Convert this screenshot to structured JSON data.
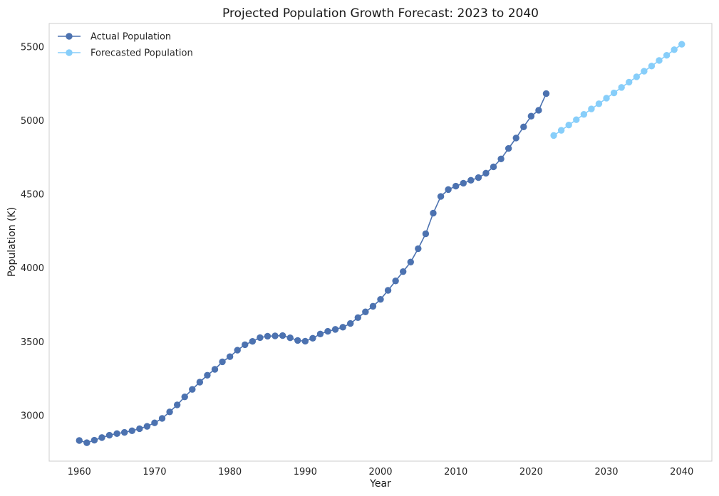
{
  "chart_data": {
    "type": "line",
    "title": "Projected Population Growth Forecast: 2023 to 2040",
    "xlabel": "Year",
    "ylabel": "Population (K)",
    "xlim": [
      1956,
      2044
    ],
    "ylim": [
      2690,
      5660
    ],
    "xticks": [
      1960,
      1970,
      1980,
      1990,
      2000,
      2010,
      2020,
      2030,
      2040
    ],
    "yticks": [
      3000,
      3500,
      4000,
      4500,
      5000,
      5500
    ],
    "grid": false,
    "legend": "top-left",
    "series": [
      {
        "name": "Actual Population",
        "color": "#4c72b0",
        "x": [
          1960,
          1961,
          1962,
          1963,
          1964,
          1965,
          1966,
          1967,
          1968,
          1969,
          1970,
          1971,
          1972,
          1973,
          1974,
          1975,
          1976,
          1977,
          1978,
          1979,
          1980,
          1981,
          1982,
          1983,
          1984,
          1985,
          1986,
          1987,
          1988,
          1989,
          1990,
          1991,
          1992,
          1993,
          1994,
          1995,
          1996,
          1997,
          1998,
          1999,
          2000,
          2001,
          2002,
          2003,
          2004,
          2005,
          2006,
          2007,
          2008,
          2009,
          2010,
          2011,
          2012,
          2013,
          2014,
          2015,
          2016,
          2017,
          2018,
          2019,
          2020,
          2021,
          2022
        ],
        "y": [
          2830,
          2815,
          2832,
          2850,
          2866,
          2877,
          2885,
          2896,
          2910,
          2926,
          2950,
          2980,
          3024,
          3072,
          3126,
          3177,
          3226,
          3273,
          3313,
          3364,
          3399,
          3443,
          3480,
          3503,
          3528,
          3538,
          3540,
          3542,
          3527,
          3509,
          3504,
          3524,
          3553,
          3571,
          3584,
          3599,
          3624,
          3664,
          3703,
          3741,
          3788,
          3849,
          3913,
          3976,
          4041,
          4132,
          4233,
          4373,
          4486,
          4533,
          4556,
          4576,
          4596,
          4614,
          4644,
          4687,
          4741,
          4812,
          4883,
          4958,
          5031,
          5071,
          5184
        ]
      },
      {
        "name": "Forecasted Population",
        "color": "#87cefa",
        "x": [
          2023,
          2024,
          2025,
          2026,
          2027,
          2028,
          2029,
          2030,
          2031,
          2032,
          2033,
          2034,
          2035,
          2036,
          2037,
          2038,
          2039,
          2040
        ],
        "y": [
          4900,
          4935,
          4971,
          5007,
          5043,
          5080,
          5115,
          5153,
          5189,
          5226,
          5262,
          5298,
          5336,
          5371,
          5409,
          5444,
          5482,
          5519
        ]
      }
    ]
  }
}
